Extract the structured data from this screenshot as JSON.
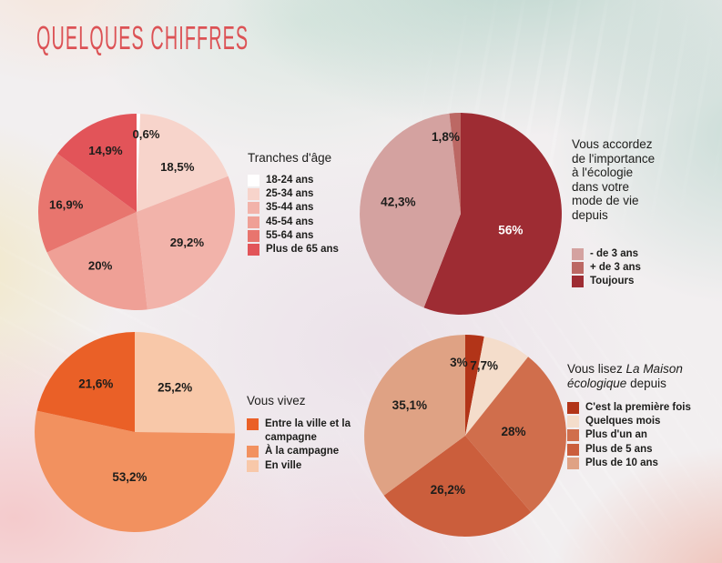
{
  "page": {
    "title": "QUELQUES CHIFFRES"
  },
  "colors": {
    "accent_title": "#dc5255",
    "text": "#1d1d1b"
  },
  "chart_data": [
    {
      "id": "ages",
      "type": "pie",
      "legend": {
        "title": "Tranches d'âge",
        "items": [
          {
            "label": "18-24 ans",
            "color": "#ffffff"
          },
          {
            "label": "25-34 ans",
            "color": "#f7d4cb"
          },
          {
            "label": "35-44 ans",
            "color": "#f2b3aa"
          },
          {
            "label": "45-54 ans",
            "color": "#efa096"
          },
          {
            "label": "55-64 ans",
            "color": "#e8756e"
          },
          {
            "label": "Plus de 65 ans",
            "color": "#e25459"
          }
        ]
      },
      "slices": [
        {
          "name": "18-24 ans",
          "value": 0.6,
          "value_label": "0,6%",
          "color": "#ffffff",
          "la": 7,
          "lr": 0.8
        },
        {
          "name": "25-34 ans",
          "value": 18.5,
          "value_label": "18,5%",
          "color": "#f7d4cb",
          "la": 42,
          "lr": 0.62
        },
        {
          "name": "35-44 ans",
          "value": 29.2,
          "value_label": "29,2%",
          "color": "#f2b3aa",
          "lr": 0.6
        },
        {
          "name": "45-54 ans",
          "value": 20,
          "value_label": "20%",
          "color": "#efa096",
          "la": 214,
          "lr": 0.66
        },
        {
          "name": "55-64 ans",
          "value": 16.9,
          "value_label": "16,9%",
          "color": "#e8756e",
          "lr": 0.72
        },
        {
          "name": "Plus de 65 ans",
          "value": 14.9,
          "value_label": "14,9%",
          "color": "#e25459",
          "lr": 0.7
        }
      ]
    },
    {
      "id": "ecologie",
      "type": "pie",
      "legend": {
        "title": "Vous accordez\nde l'importance\nà l'écologie\ndans votre\nmode de vie\ndepuis",
        "items": [
          {
            "label": "- de 3 ans",
            "color": "#d4a2a0"
          },
          {
            "label": "+ de 3 ans",
            "color": "#bc6864"
          },
          {
            "label": "Toujours",
            "color": "#9e2c33"
          }
        ]
      },
      "slices": [
        {
          "name": "Toujours",
          "value": 56,
          "value_label": "56%",
          "color": "#9e2c33",
          "la": 108,
          "lr": 0.52,
          "lc": "#ffffff"
        },
        {
          "name": "- de 3 ans",
          "value": 42.3,
          "value_label": "42,3%",
          "color": "#d4a2a0",
          "la": 281,
          "lr": 0.63
        },
        {
          "name": "+ de 3 ans",
          "value": 1.8,
          "value_label": "1,8%",
          "color": "#bc6864",
          "la": 349,
          "lr": 0.78
        }
      ]
    },
    {
      "id": "vivez",
      "type": "pie",
      "legend": {
        "title": "Vous vivez",
        "items": [
          {
            "label": "Entre la ville et la campagne",
            "color": "#ea6027"
          },
          {
            "label": "À la campagne",
            "color": "#f2915f"
          },
          {
            "label": "En ville",
            "color": "#f8c8a9"
          }
        ]
      },
      "slices": [
        {
          "name": "En ville",
          "value": 25.2,
          "value_label": "25,2%",
          "color": "#f8c8a9",
          "la": 42,
          "lr": 0.6
        },
        {
          "name": "À la campagne",
          "value": 53.2,
          "value_label": "53,2%",
          "color": "#f2915f",
          "lr": 0.45
        },
        {
          "name": "Entre la ville et la campagne",
          "value": 21.6,
          "value_label": "21,6%",
          "color": "#ea6027",
          "lr": 0.62
        }
      ]
    },
    {
      "id": "lecture",
      "type": "pie",
      "legend": {
        "title_prefix": "Vous lisez ",
        "title_italic": "La Maison écologique",
        "title_suffix": " depuis",
        "items": [
          {
            "label": "C'est la première fois",
            "color": "#b23418"
          },
          {
            "label": "Quelques mois",
            "color": "#f4ddcb"
          },
          {
            "label": "Plus d'un an",
            "color": "#d06e4c"
          },
          {
            "label": "Plus de 5 ans",
            "color": "#cb5e3c"
          },
          {
            "label": "Plus de 10 ans",
            "color": "#dfa284"
          }
        ]
      },
      "slices": [
        {
          "name": "C'est la première fois",
          "value": 3,
          "value_label": "3%",
          "color": "#b23418",
          "la": 355,
          "lr": 0.73
        },
        {
          "name": "Quelques mois",
          "value": 7.7,
          "value_label": "7,7%",
          "color": "#f4ddcb",
          "la": 15,
          "lr": 0.72
        },
        {
          "name": "Plus d'un an",
          "value": 28,
          "value_label": "28%",
          "color": "#d06e4c",
          "la": 85,
          "lr": 0.48
        },
        {
          "name": "Plus de 5 ans",
          "value": 26.2,
          "value_label": "26,2%",
          "color": "#cb5e3c",
          "la": 198,
          "lr": 0.56
        },
        {
          "name": "Plus de 10 ans",
          "value": 35.1,
          "value_label": "35,1%",
          "color": "#dfa284",
          "la": 299,
          "lr": 0.63
        }
      ]
    }
  ]
}
